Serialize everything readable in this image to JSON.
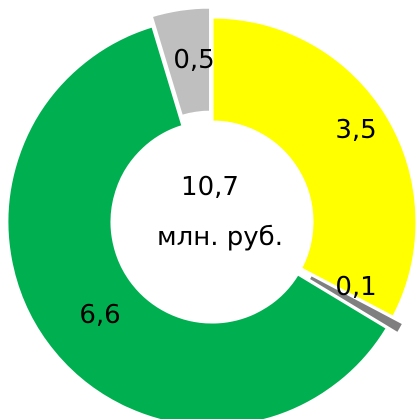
{
  "chart_data": {
    "type": "pie",
    "donut": true,
    "categories": [
      "3,5",
      "0,1",
      "6,6",
      "0,5"
    ],
    "values": [
      3.5,
      0.1,
      6.6,
      0.5
    ],
    "labels": [
      "3,5",
      "0,1",
      "6,6",
      "0,5"
    ],
    "colors": [
      "#ffff00",
      "#7f7f7f",
      "#00b050",
      "#bfbfbf"
    ],
    "center_value": "10,7",
    "center_unit": "млн. руб.",
    "legend": "none"
  }
}
